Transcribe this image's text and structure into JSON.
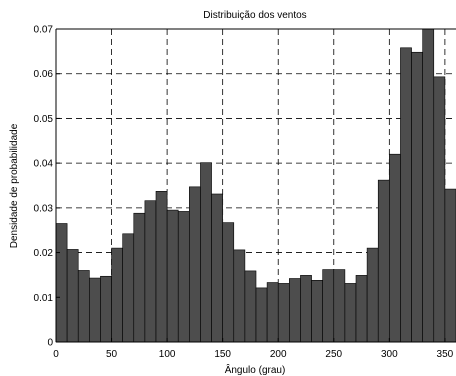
{
  "chart_data": {
    "type": "bar",
    "title": "Distribuição dos ventos",
    "xlabel": "Ângulo (grau)",
    "ylabel": "Densidade de probabilidade",
    "xlim": [
      0,
      360
    ],
    "ylim": [
      0,
      0.07
    ],
    "bin_width": 10,
    "grid": true,
    "x_ticks": [
      0,
      50,
      100,
      150,
      200,
      250,
      300,
      350
    ],
    "x_tick_labels": [
      "0",
      "50",
      "100",
      "150",
      "200",
      "250",
      "300",
      "350"
    ],
    "y_ticks": [
      0,
      0.01,
      0.02,
      0.03,
      0.04,
      0.05,
      0.06,
      0.07
    ],
    "y_tick_labels": [
      "0",
      "0.01",
      "0.02",
      "0.03",
      "0.04",
      "0.05",
      "0.06",
      "0.07"
    ],
    "bins": [
      0,
      10,
      20,
      30,
      40,
      50,
      60,
      70,
      80,
      90,
      100,
      110,
      120,
      130,
      140,
      150,
      160,
      170,
      180,
      190,
      200,
      210,
      220,
      230,
      240,
      250,
      260,
      270,
      280,
      290,
      300,
      310,
      320,
      330,
      340,
      350
    ],
    "values": [
      0.0265,
      0.0207,
      0.016,
      0.0143,
      0.0147,
      0.021,
      0.0242,
      0.0288,
      0.0316,
      0.0337,
      0.0295,
      0.0292,
      0.0347,
      0.0401,
      0.0331,
      0.0267,
      0.0206,
      0.0159,
      0.0121,
      0.0133,
      0.0131,
      0.0142,
      0.0149,
      0.0138,
      0.0162,
      0.0162,
      0.0131,
      0.0149,
      0.021,
      0.0362,
      0.042,
      0.0658,
      0.0648,
      0.07,
      0.0593,
      0.0342
    ]
  }
}
